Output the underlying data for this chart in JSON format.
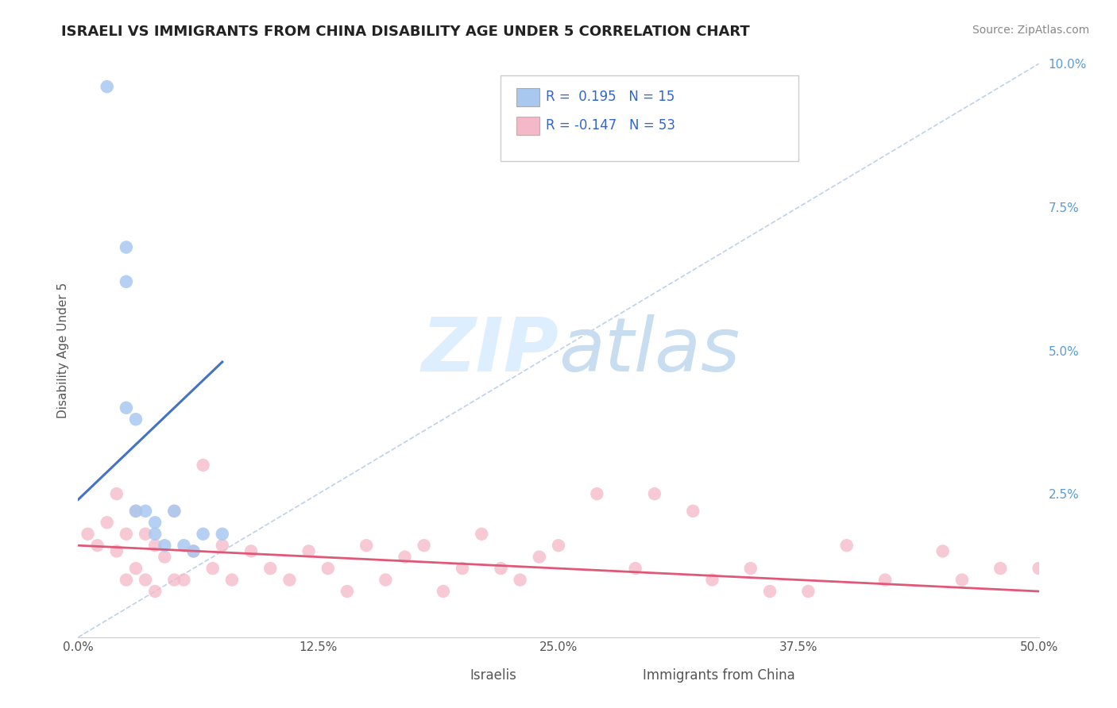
{
  "title": "ISRAELI VS IMMIGRANTS FROM CHINA DISABILITY AGE UNDER 5 CORRELATION CHART",
  "source": "Source: ZipAtlas.com",
  "ylabel": "Disability Age Under 5",
  "legend_label1": "Israelis",
  "legend_label2": "Immigrants from China",
  "r1": 0.195,
  "n1": 15,
  "r2": -0.147,
  "n2": 53,
  "xlim": [
    0.0,
    0.5
  ],
  "ylim": [
    0.0,
    0.1
  ],
  "yticks": [
    0.0,
    0.025,
    0.05,
    0.075,
    0.1
  ],
  "ytick_labels": [
    "",
    "2.5%",
    "5.0%",
    "7.5%",
    "10.0%"
  ],
  "xtick_positions": [
    0.0,
    0.125,
    0.25,
    0.375,
    0.5
  ],
  "xtick_labels": [
    "0.0%",
    "12.5%",
    "25.0%",
    "37.5%",
    "50.0%"
  ],
  "color_blue": "#a8c8f0",
  "color_pink": "#f5b8c8",
  "trend_blue": "#4472c4",
  "trend_pink": "#e05878",
  "ref_line_color": "#b8cce8",
  "watermark_zip": "ZIP",
  "watermark_atlas": "atlas",
  "watermark_color": "#ddeeff",
  "israelis_x": [
    0.015,
    0.025,
    0.025,
    0.025,
    0.03,
    0.03,
    0.035,
    0.04,
    0.04,
    0.045,
    0.05,
    0.055,
    0.06,
    0.065,
    0.075
  ],
  "israelis_y": [
    0.096,
    0.062,
    0.068,
    0.04,
    0.038,
    0.022,
    0.022,
    0.02,
    0.018,
    0.016,
    0.022,
    0.016,
    0.015,
    0.018,
    0.018
  ],
  "china_x": [
    0.005,
    0.01,
    0.015,
    0.02,
    0.02,
    0.025,
    0.025,
    0.03,
    0.03,
    0.035,
    0.035,
    0.04,
    0.04,
    0.045,
    0.05,
    0.05,
    0.055,
    0.06,
    0.065,
    0.07,
    0.075,
    0.08,
    0.09,
    0.1,
    0.11,
    0.12,
    0.13,
    0.14,
    0.15,
    0.16,
    0.17,
    0.18,
    0.19,
    0.2,
    0.21,
    0.22,
    0.23,
    0.24,
    0.25,
    0.27,
    0.29,
    0.32,
    0.35,
    0.38,
    0.42,
    0.45,
    0.48,
    0.5,
    0.3,
    0.33,
    0.36,
    0.4,
    0.46
  ],
  "china_y": [
    0.018,
    0.016,
    0.02,
    0.015,
    0.025,
    0.01,
    0.018,
    0.012,
    0.022,
    0.01,
    0.018,
    0.008,
    0.016,
    0.014,
    0.01,
    0.022,
    0.01,
    0.015,
    0.03,
    0.012,
    0.016,
    0.01,
    0.015,
    0.012,
    0.01,
    0.015,
    0.012,
    0.008,
    0.016,
    0.01,
    0.014,
    0.016,
    0.008,
    0.012,
    0.018,
    0.012,
    0.01,
    0.014,
    0.016,
    0.025,
    0.012,
    0.022,
    0.012,
    0.008,
    0.01,
    0.015,
    0.012,
    0.012,
    0.025,
    0.01,
    0.008,
    0.016,
    0.01
  ],
  "blue_trend_x": [
    0.0,
    0.075
  ],
  "blue_trend_y_start": 0.024,
  "blue_trend_y_end": 0.048,
  "pink_trend_x": [
    0.0,
    0.5
  ],
  "pink_trend_y_start": 0.016,
  "pink_trend_y_end": 0.008
}
